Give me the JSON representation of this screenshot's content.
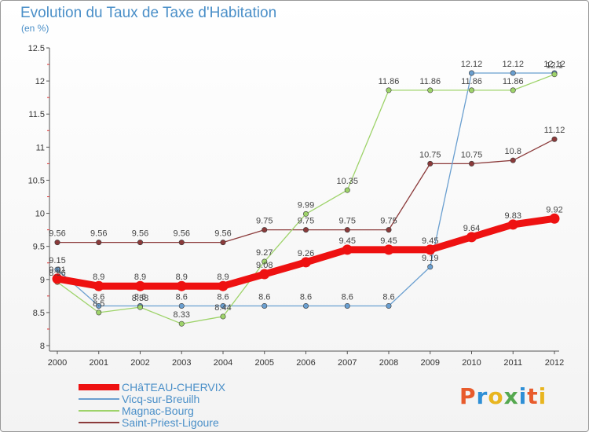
{
  "title": "Evolution du Taux de Taxe d'Habitation",
  "subtitle": "(en %)",
  "logo": {
    "text": "Proxiti",
    "letter_colors": [
      "#e85b2c",
      "#2e8fd6",
      "#e8b51f",
      "#55a84f",
      "#2e8fd6",
      "#e85b2c",
      "#e8b51f"
    ]
  },
  "chart_data": {
    "type": "line",
    "x": [
      "2000",
      "2001",
      "2002",
      "2003",
      "2004",
      "2005",
      "2006",
      "2007",
      "2008",
      "2009",
      "2010",
      "2011",
      "2012"
    ],
    "ylim": [
      8,
      12.5
    ],
    "yticks": [
      "8",
      "8.5",
      "9",
      "9.5",
      "10",
      "10.5",
      "11",
      "11.5",
      "12",
      "12.5"
    ],
    "grid": false,
    "legend": "bottom-left",
    "series": [
      {
        "name": "CHâTEAU-CHERVIX",
        "color": "#ee1111",
        "values": [
          9.01,
          8.9,
          8.9,
          8.9,
          8.9,
          9.08,
          9.26,
          9.45,
          9.45,
          9.45,
          9.64,
          9.83,
          9.92
        ],
        "labels": [
          "9.01",
          "8.9",
          "8.9",
          "8.9",
          "8.9",
          "9.08",
          "9.26",
          "9.45",
          "9.45",
          "9.45",
          "9.64",
          "9.83",
          "9.92"
        ]
      },
      {
        "name": "Vicq-sur-Breuilh",
        "color": "#6a9fd0",
        "values": [
          9.15,
          8.6,
          8.6,
          8.6,
          8.6,
          8.6,
          8.6,
          8.6,
          8.6,
          9.19,
          12.12,
          12.12,
          12.12
        ],
        "labels": [
          "9.15",
          "8.6",
          "8.6",
          "8.6",
          "8.6",
          "8.6",
          "8.6",
          "8.6",
          "8.6",
          "9.19",
          "12.12",
          "12.12",
          "12.12"
        ]
      },
      {
        "name": "Magnac-Bourg",
        "color": "#9ed36a",
        "values": [
          8.96,
          8.5,
          8.58,
          8.33,
          8.44,
          9.27,
          9.99,
          10.35,
          11.86,
          11.86,
          11.86,
          11.86,
          12.1
        ],
        "labels": [
          "8.96",
          "8.5",
          "8.58",
          "8.33",
          "8.44",
          "9.27",
          "9.99",
          "10.35",
          "11.86",
          "11.86",
          "11.86",
          "11.86",
          "12.1"
        ]
      },
      {
        "name": "Saint-Priest-Ligoure",
        "color": "#8b3a3a",
        "values": [
          9.56,
          9.56,
          9.56,
          9.56,
          9.56,
          9.75,
          9.75,
          9.75,
          9.75,
          10.75,
          10.75,
          10.8,
          11.12
        ],
        "labels": [
          "9.56",
          "9.56",
          "9.56",
          "9.56",
          "9.56",
          "9.75",
          "9.75",
          "9.75",
          "9.75",
          "10.75",
          "10.75",
          "10.8",
          "11.12"
        ]
      }
    ]
  }
}
